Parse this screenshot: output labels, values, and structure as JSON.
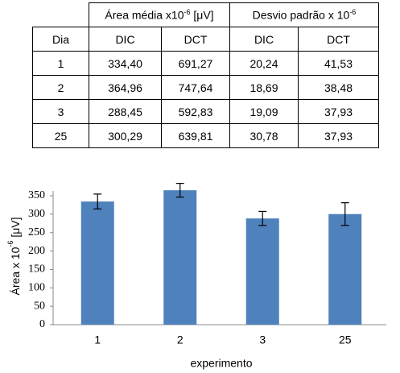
{
  "table": {
    "header_groups": [
      {
        "text": "Área média x10",
        "sup": "-6",
        "suffix": " [μV]"
      },
      {
        "text": "Desvio padrão x 10",
        "sup": "-6"
      }
    ],
    "columns": [
      "Dia",
      "DIC",
      "DCT",
      "DIC",
      "DCT"
    ],
    "rows": [
      [
        "1",
        "334,40",
        "691,27",
        "20,24",
        "41,53"
      ],
      [
        "2",
        "364,96",
        "747,64",
        "18,69",
        "38,48"
      ],
      [
        "3",
        "288,45",
        "592,83",
        "19,09",
        "37,93"
      ],
      [
        "25",
        "300,29",
        "639,81",
        "30,78",
        "37,93"
      ]
    ]
  },
  "chart_data": {
    "type": "bar",
    "categories": [
      "1",
      "2",
      "3",
      "25"
    ],
    "values": [
      334.4,
      364.96,
      288.45,
      300.29
    ],
    "errors": [
      20.24,
      18.69,
      19.09,
      30.78
    ],
    "color": "#4f81bd",
    "ylim": [
      0,
      350
    ],
    "yticks": [
      0,
      50,
      100,
      150,
      200,
      250,
      300,
      350
    ],
    "y_label": {
      "text": "Área x 10",
      "sup": "-6",
      "suffix": " [μV]"
    },
    "x_label": "experimento"
  }
}
